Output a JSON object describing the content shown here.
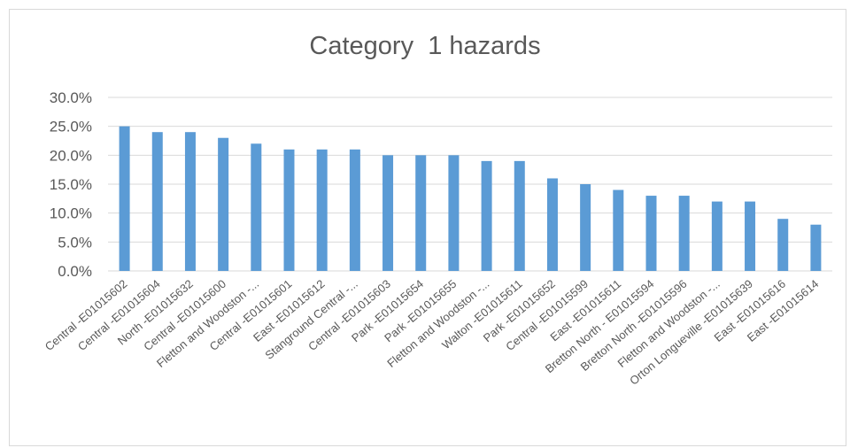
{
  "chart_data": {
    "type": "bar",
    "title": "Category  1 hazards",
    "xlabel": "",
    "ylabel": "",
    "ylim": [
      0,
      0.3
    ],
    "yticks": [
      {
        "value": 0.0,
        "label": "0.0%"
      },
      {
        "value": 0.05,
        "label": "5.0%"
      },
      {
        "value": 0.1,
        "label": "10.0%"
      },
      {
        "value": 0.15,
        "label": "15.0%"
      },
      {
        "value": 0.2,
        "label": "20.0%"
      },
      {
        "value": 0.25,
        "label": "25.0%"
      },
      {
        "value": 0.3,
        "label": "30.0%"
      }
    ],
    "grid": true,
    "legend": "none",
    "bar_color": "#5b9bd5",
    "gridline_color": "#d9d9d9",
    "categories": [
      "Central -E01015602",
      "Central -E01015604",
      "North -E01015632",
      "Central -E01015600",
      "Fletton and Woodston -...",
      "Central -E01015601",
      "East -E01015612",
      "Stanground Central -...",
      "Central -E01015603",
      "Park -E01015654",
      "Park -E01015655",
      "Fletton and Woodston -...",
      "Walton -E01015611",
      "Park -E01015652",
      "Central -E01015599",
      "East -E01015611",
      "Bretton North - E01015594",
      "Bretton North -E01015596",
      "Fletton and Woodston -...",
      "Orton Longueville -E01015639",
      "East -E01015616",
      "East -E01015614"
    ],
    "values": [
      0.25,
      0.24,
      0.24,
      0.23,
      0.22,
      0.21,
      0.21,
      0.21,
      0.2,
      0.2,
      0.2,
      0.19,
      0.19,
      0.16,
      0.15,
      0.14,
      0.13,
      0.13,
      0.12,
      0.12,
      0.09,
      0.08
    ]
  }
}
